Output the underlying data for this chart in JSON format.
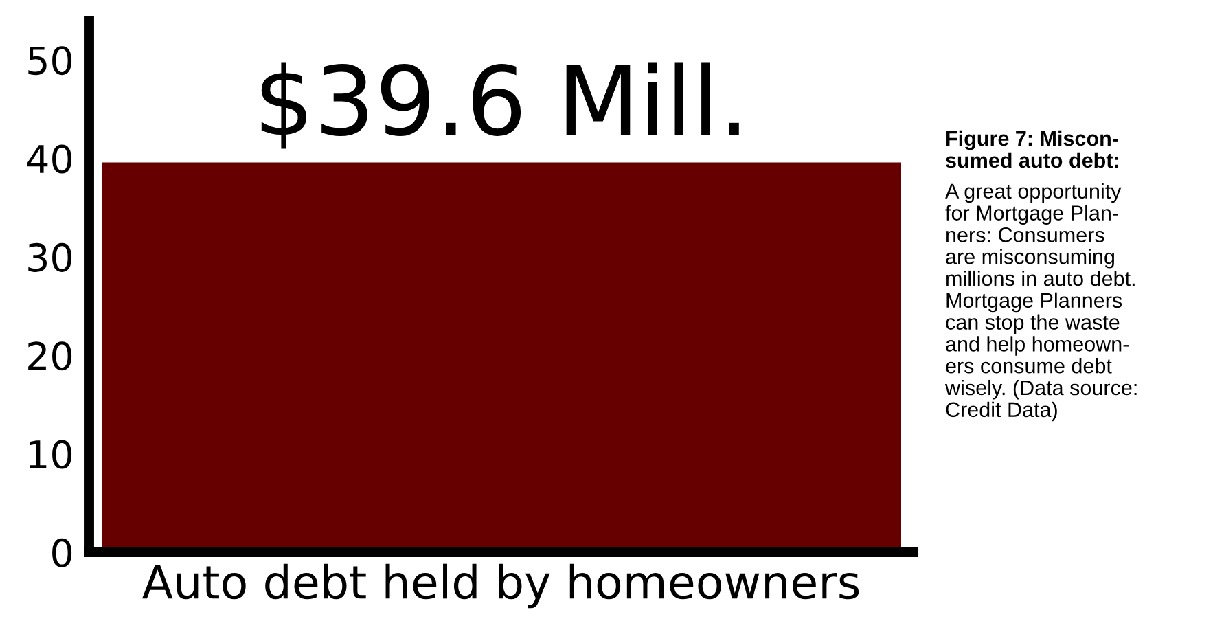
{
  "chart_data": {
    "type": "bar",
    "categories": [
      "Auto debt held by homeowners"
    ],
    "values": [
      39.6
    ],
    "color": "#660000",
    "value_labels": [
      "$39.6 Mill."
    ],
    "ylim": [
      0,
      54
    ],
    "yticks": [
      0,
      10,
      20,
      30,
      40,
      50
    ],
    "grid": false,
    "legend": false,
    "annotations": [
      "Figure 7: Miscon-\nsumed auto debt:",
      "A great opportunity\nfor Mortgage Plan-\nners: Consumers\nare misconsuming\nmillions in auto debt.\nMortgage Planners\ncan stop the waste\nand help homeown-\ners consume debt\nwisely. (Data source:\nCredit Data)"
    ]
  }
}
